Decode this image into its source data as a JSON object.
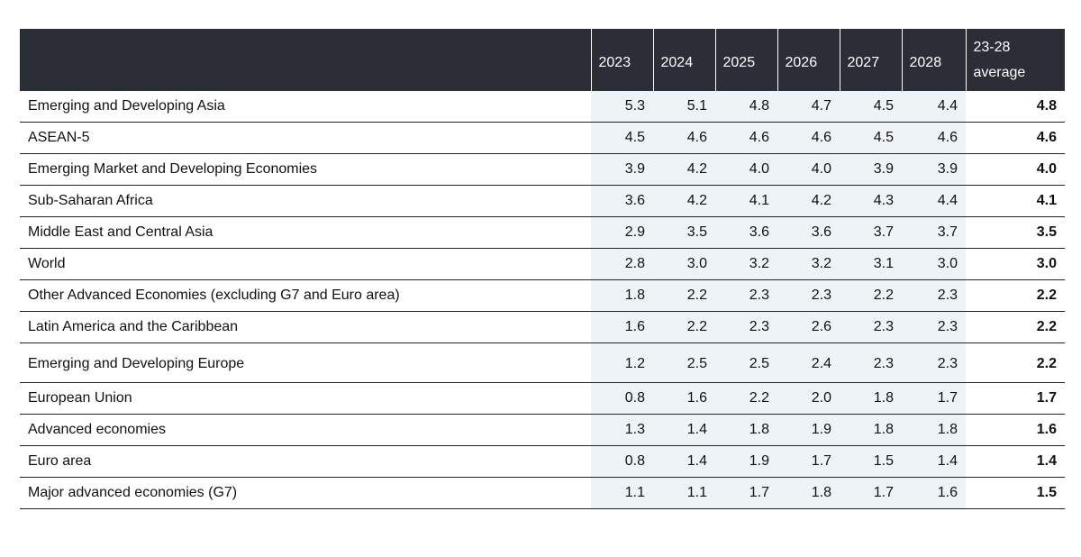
{
  "chart_data": {
    "type": "table",
    "columns": [
      "2023",
      "2024",
      "2025",
      "2026",
      "2027",
      "2028"
    ],
    "average_header": [
      "23-28",
      "average"
    ],
    "rows": [
      {
        "name": "Emerging and Developing Asia",
        "values": [
          "5.3",
          "5.1",
          "4.8",
          "4.7",
          "4.5",
          "4.4"
        ],
        "average": "4.8"
      },
      {
        "name": "ASEAN-5",
        "values": [
          "4.5",
          "4.6",
          "4.6",
          "4.6",
          "4.5",
          "4.6"
        ],
        "average": "4.6"
      },
      {
        "name": "Emerging Market and Developing Economies",
        "values": [
          "3.9",
          "4.2",
          "4.0",
          "4.0",
          "3.9",
          "3.9"
        ],
        "average": "4.0"
      },
      {
        "name": "Sub-Saharan Africa",
        "values": [
          "3.6",
          "4.2",
          "4.1",
          "4.2",
          "4.3",
          "4.4"
        ],
        "average": "4.1"
      },
      {
        "name": "Middle East and Central Asia",
        "values": [
          "2.9",
          "3.5",
          "3.6",
          "3.6",
          "3.7",
          "3.7"
        ],
        "average": "3.5"
      },
      {
        "name": "World",
        "values": [
          "2.8",
          "3.0",
          "3.2",
          "3.2",
          "3.1",
          "3.0"
        ],
        "average": "3.0"
      },
      {
        "name": "Other Advanced Economies (excluding G7 and Euro area)",
        "values": [
          "1.8",
          "2.2",
          "2.3",
          "2.3",
          "2.2",
          "2.3"
        ],
        "average": "2.2"
      },
      {
        "name": "Latin America and the Caribbean",
        "values": [
          "1.6",
          "2.2",
          "2.3",
          "2.6",
          "2.3",
          "2.3"
        ],
        "average": "2.2"
      },
      {
        "name": "Emerging and Developing Europe",
        "values": [
          "1.2",
          "2.5",
          "2.5",
          "2.4",
          "2.3",
          "2.3"
        ],
        "average": "2.2"
      },
      {
        "name": "European Union",
        "values": [
          "0.8",
          "1.6",
          "2.2",
          "2.0",
          "1.8",
          "1.7"
        ],
        "average": "1.7"
      },
      {
        "name": "Advanced economies",
        "values": [
          "1.3",
          "1.4",
          "1.8",
          "1.9",
          "1.8",
          "1.8"
        ],
        "average": "1.6"
      },
      {
        "name": "Euro area",
        "values": [
          "0.8",
          "1.4",
          "1.9",
          "1.7",
          "1.5",
          "1.4"
        ],
        "average": "1.4"
      },
      {
        "name": "Major advanced economies (G7)",
        "values": [
          "1.1",
          "1.1",
          "1.7",
          "1.8",
          "1.7",
          "1.6"
        ],
        "average": "1.5"
      }
    ]
  },
  "colors": {
    "header_bg": "#2b2e36",
    "value_cell_bg": "#eef3f7",
    "rule": "#222222"
  }
}
